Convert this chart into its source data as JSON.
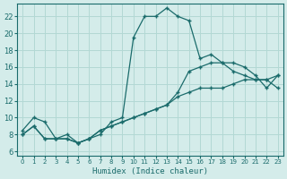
{
  "title": "",
  "xlabel": "Humidex (Indice chaleur)",
  "ylabel": "",
  "bg_color": "#d4ecea",
  "grid_color": "#b2d8d4",
  "line_color": "#1a6b6b",
  "x_ticks": [
    0,
    1,
    2,
    3,
    4,
    5,
    6,
    7,
    8,
    9,
    10,
    11,
    12,
    13,
    14,
    15,
    16,
    17,
    18,
    19,
    20,
    21,
    22,
    23
  ],
  "y_ticks": [
    6,
    8,
    10,
    12,
    14,
    16,
    18,
    20,
    22
  ],
  "xlim": [
    -0.5,
    23.5
  ],
  "ylim": [
    5.5,
    23.5
  ],
  "line1_x": [
    0,
    1,
    2,
    3,
    4,
    5,
    6,
    7,
    8,
    9,
    10,
    11,
    12,
    13,
    14,
    15,
    16,
    17,
    18,
    19,
    20,
    21,
    22,
    23
  ],
  "line1_y": [
    8.5,
    10.0,
    9.5,
    7.5,
    8.0,
    7.0,
    7.5,
    8.0,
    9.5,
    10.0,
    19.5,
    22.0,
    22.0,
    23.0,
    22.0,
    21.5,
    17.0,
    17.5,
    16.5,
    16.5,
    16.0,
    15.0,
    13.5,
    15.0
  ],
  "line2_x": [
    0,
    1,
    2,
    3,
    4,
    5,
    6,
    7,
    8,
    9,
    10,
    11,
    12,
    13,
    14,
    15,
    16,
    17,
    18,
    19,
    20,
    21,
    22,
    23
  ],
  "line2_y": [
    8.0,
    9.0,
    7.5,
    7.5,
    7.5,
    7.0,
    7.5,
    8.5,
    9.0,
    9.5,
    10.0,
    10.5,
    11.0,
    11.5,
    13.0,
    15.5,
    16.0,
    16.5,
    16.5,
    15.5,
    15.0,
    14.5,
    14.5,
    15.0
  ],
  "line3_x": [
    0,
    1,
    2,
    3,
    4,
    5,
    6,
    7,
    8,
    9,
    10,
    11,
    12,
    13,
    14,
    15,
    16,
    17,
    18,
    19,
    20,
    21,
    22,
    23
  ],
  "line3_y": [
    8.0,
    9.0,
    7.5,
    7.5,
    7.5,
    7.0,
    7.5,
    8.5,
    9.0,
    9.5,
    10.0,
    10.5,
    11.0,
    11.5,
    12.5,
    13.0,
    13.5,
    13.5,
    13.5,
    14.0,
    14.5,
    14.5,
    14.5,
    13.5
  ]
}
